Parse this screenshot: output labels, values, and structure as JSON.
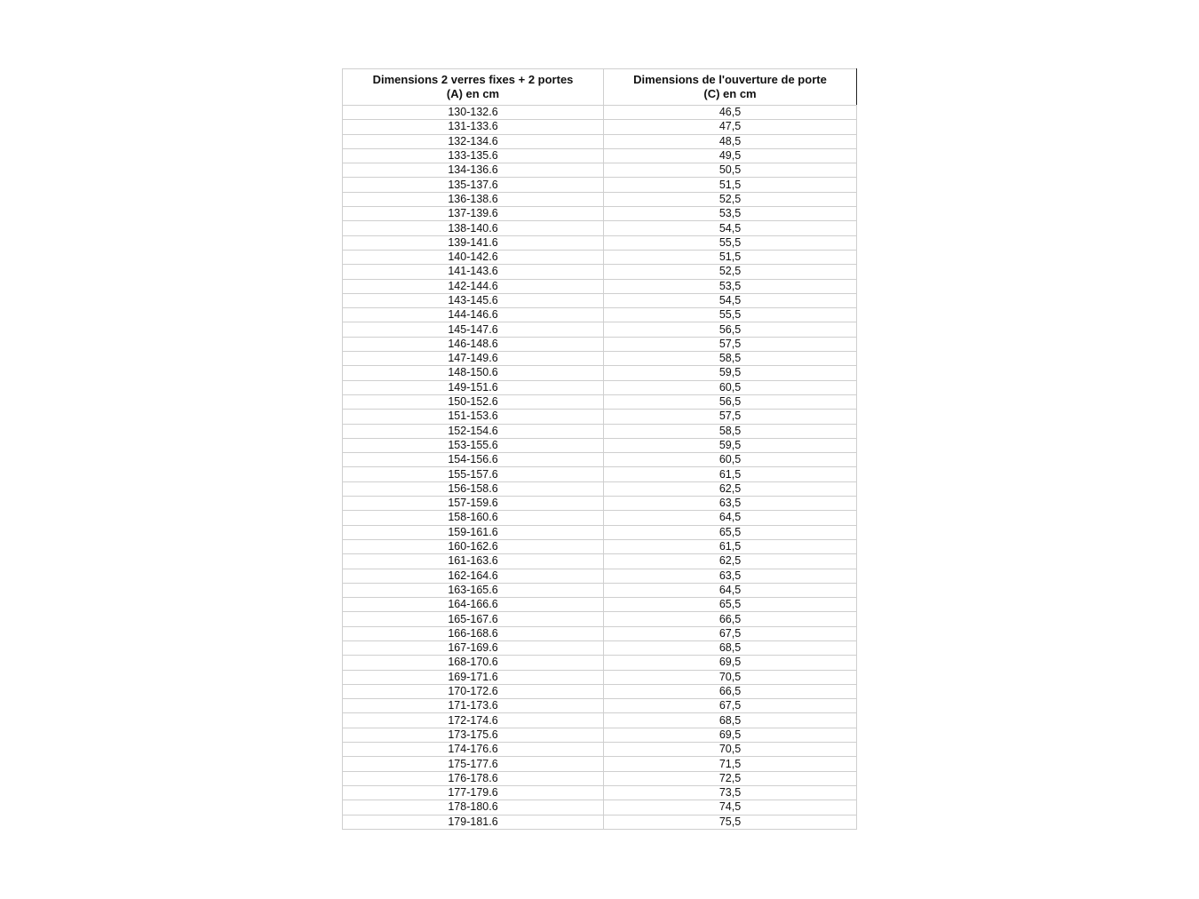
{
  "table": {
    "headers": [
      [
        "Dimensions 2 verres fixes + 2 portes",
        "(A) en cm"
      ],
      [
        "Dimensions de l'ouverture de porte",
        "(C) en cm"
      ]
    ],
    "rows": [
      [
        "130-132.6",
        "46,5"
      ],
      [
        "131-133.6",
        "47,5"
      ],
      [
        "132-134.6",
        "48,5"
      ],
      [
        "133-135.6",
        "49,5"
      ],
      [
        "134-136.6",
        "50,5"
      ],
      [
        "135-137.6",
        "51,5"
      ],
      [
        "136-138.6",
        "52,5"
      ],
      [
        "137-139.6",
        "53,5"
      ],
      [
        "138-140.6",
        "54,5"
      ],
      [
        "139-141.6",
        "55,5"
      ],
      [
        "140-142.6",
        "51,5"
      ],
      [
        "141-143.6",
        "52,5"
      ],
      [
        "142-144.6",
        "53,5"
      ],
      [
        "143-145.6",
        "54,5"
      ],
      [
        "144-146.6",
        "55,5"
      ],
      [
        "145-147.6",
        "56,5"
      ],
      [
        "146-148.6",
        "57,5"
      ],
      [
        "147-149.6",
        "58,5"
      ],
      [
        "148-150.6",
        "59,5"
      ],
      [
        "149-151.6",
        "60,5"
      ],
      [
        "150-152.6",
        "56,5"
      ],
      [
        "151-153.6",
        "57,5"
      ],
      [
        "152-154.6",
        "58,5"
      ],
      [
        "153-155.6",
        "59,5"
      ],
      [
        "154-156.6",
        "60,5"
      ],
      [
        "155-157.6",
        "61,5"
      ],
      [
        "156-158.6",
        "62,5"
      ],
      [
        "157-159.6",
        "63,5"
      ],
      [
        "158-160.6",
        "64,5"
      ],
      [
        "159-161.6",
        "65,5"
      ],
      [
        "160-162.6",
        "61,5"
      ],
      [
        "161-163.6",
        "62,5"
      ],
      [
        "162-164.6",
        "63,5"
      ],
      [
        "163-165.6",
        "64,5"
      ],
      [
        "164-166.6",
        "65,5"
      ],
      [
        "165-167.6",
        "66,5"
      ],
      [
        "166-168.6",
        "67,5"
      ],
      [
        "167-169.6",
        "68,5"
      ],
      [
        "168-170.6",
        "69,5"
      ],
      [
        "169-171.6",
        "70,5"
      ],
      [
        "170-172.6",
        "66,5"
      ],
      [
        "171-173.6",
        "67,5"
      ],
      [
        "172-174.6",
        "68,5"
      ],
      [
        "173-175.6",
        "69,5"
      ],
      [
        "174-176.6",
        "70,5"
      ],
      [
        "175-177.6",
        "71,5"
      ],
      [
        "176-178.6",
        "72,5"
      ],
      [
        "177-179.6",
        "73,5"
      ],
      [
        "178-180.6",
        "74,5"
      ],
      [
        "179-181.6",
        "75,5"
      ]
    ]
  }
}
